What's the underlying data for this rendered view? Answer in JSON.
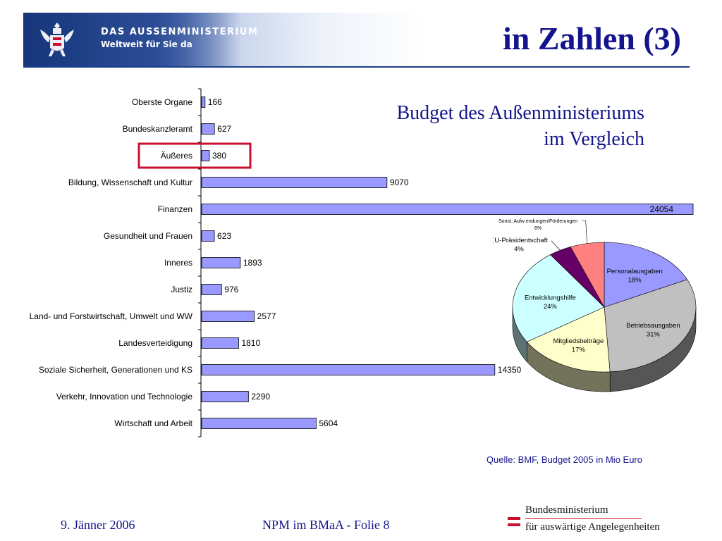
{
  "header": {
    "org_name": "DAS AUSSENMINISTERIUM",
    "org_slogan": "Weltweit für Sie da",
    "slide_title": "in Zahlen (3)"
  },
  "chart_title": {
    "line1": "Budget des Außenministeriums",
    "line2": "im Vergleich"
  },
  "source": "Quelle: BMF, Budget  2005 in Mio Euro",
  "footer": {
    "date": "9. Jänner 2006",
    "slide": "NPM im BMaA - Folie 8",
    "ministry_line1": "Bundesministerium",
    "ministry_line2": "für auswärtige Angelegenheiten"
  },
  "colors": {
    "title_blue": "#14148c",
    "bar_fill": "#9999ff",
    "highlight_box": "#c8102e"
  },
  "chart_data": [
    {
      "type": "bar",
      "orientation": "horizontal",
      "categories": [
        "Oberste Organe",
        "Bundeskanzleramt",
        "Äußeres",
        "Bildung, Wissenschaft und Kultur",
        "Finanzen",
        "Gesundheit und Frauen",
        "Inneres",
        "Justiz",
        "Land- und Forstwirtschaft, Umwelt und WW",
        "Landesverteidigung",
        "Soziale Sicherheit, Generationen und KS",
        "Verkehr, Innovation und Technologie",
        "Wirtschaft und Arbeit"
      ],
      "values": [
        166,
        627,
        380,
        9070,
        24054,
        623,
        1893,
        976,
        2577,
        1810,
        14350,
        2290,
        5604
      ],
      "xlim": [
        0,
        24054
      ],
      "highlighted_category": "Äußeres",
      "grid": false
    },
    {
      "type": "pie",
      "style": "3d",
      "slices": [
        {
          "label": "Personalausgaben",
          "percent": "18%",
          "value": 18,
          "color": "#9999ff"
        },
        {
          "label": "Betriebsausgaben",
          "percent": "31%",
          "value": 31,
          "color": "#c0c0c0"
        },
        {
          "label": "Mitgliedsbeiträge",
          "percent": "17%",
          "value": 17,
          "color": "#ffffcc"
        },
        {
          "label": "Entwicklungshilfe",
          "percent": "24%",
          "value": 24,
          "color": "#ccffff"
        },
        {
          "label": "EU-Präsidentschaft",
          "percent": "4%",
          "value": 4,
          "color": "#660066"
        },
        {
          "label": "Sonst. Aufw endungen/Förderungen",
          "percent": "6%",
          "value": 6,
          "color": "#ff8080"
        }
      ]
    }
  ]
}
